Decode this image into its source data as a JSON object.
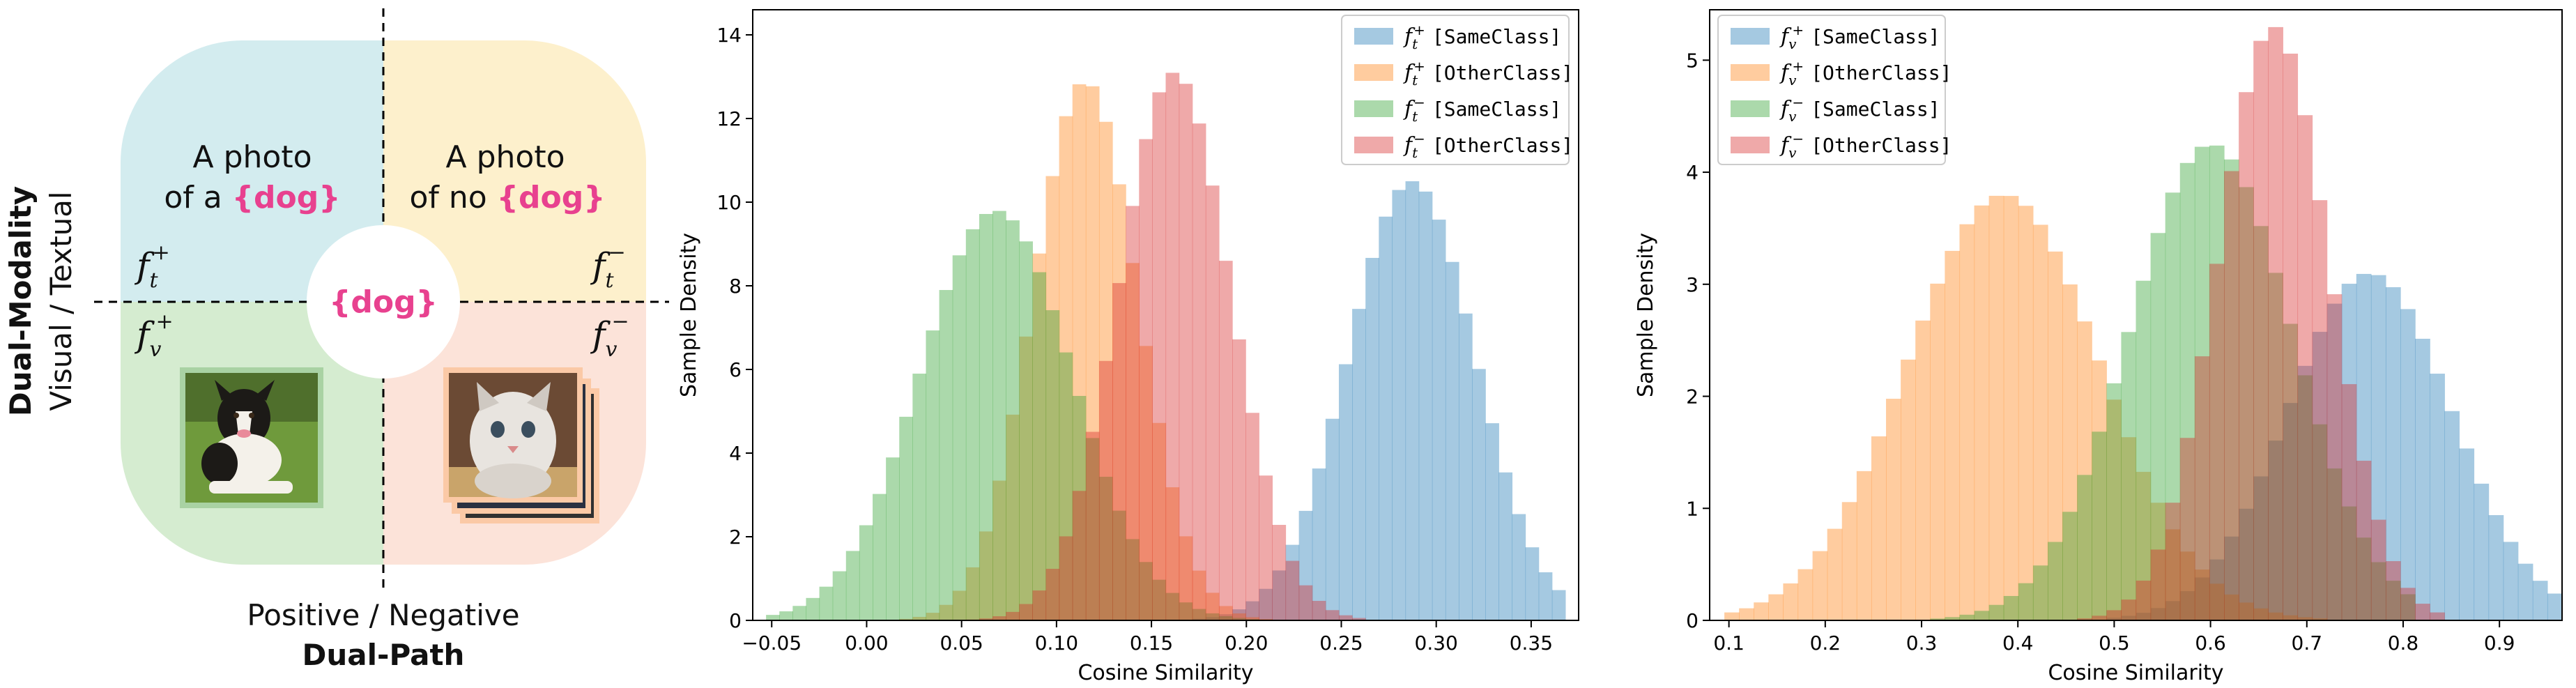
{
  "diagram": {
    "quadrant_text": {
      "top_left_line1": "A photo",
      "top_left_line2": "of a",
      "top_right_line1": "A photo",
      "top_right_line2": "of no",
      "token": "{dog}"
    },
    "center_token": "{dog}",
    "feature_labels": {
      "text_positive": "f",
      "text_positive_sub": "t",
      "text_positive_sup": "+",
      "text_negative": "f",
      "text_negative_sub": "t",
      "text_negative_sup": "−",
      "visual_positive": "f",
      "visual_positive_sub": "v",
      "visual_positive_sup": "+",
      "visual_negative": "f",
      "visual_negative_sub": "v",
      "visual_negative_sup": "−"
    },
    "vertical_axis_bold": "Dual-Modality",
    "vertical_axis_normal": "Visual / Textual",
    "horizontal_axis_normal": "Positive / Negative",
    "horizontal_axis_bold": "Dual-Path",
    "colors": {
      "top_left": "#d3ecef",
      "top_right": "#fdf0cc",
      "bottom_left": "#d5ecd0",
      "bottom_right": "#fce3d9",
      "token": "#e8418f"
    },
    "icons": {
      "dog_photo": "dog-photo-icon",
      "cat_photo": "cat-photo-icon"
    }
  },
  "chart_data": [
    {
      "type": "histogram",
      "xlabel": "Cosine Similarity",
      "ylabel": "Sample Density",
      "xlim": [
        -0.06,
        0.375
      ],
      "ylim": [
        0,
        14.6
      ],
      "xticks": [
        "−0.05",
        "0.00",
        "0.05",
        "0.10",
        "0.15",
        "0.20",
        "0.25",
        "0.30",
        "0.35"
      ],
      "xtick_values": [
        -0.05,
        0,
        0.05,
        0.1,
        0.15,
        0.2,
        0.25,
        0.3,
        0.35
      ],
      "yticks": [
        "0",
        "2",
        "4",
        "6",
        "8",
        "10",
        "12",
        "14"
      ],
      "ytick_values": [
        0,
        2,
        4,
        6,
        8,
        10,
        12,
        14
      ],
      "legend_position": "top-right",
      "series": [
        {
          "name": "[SameClass]",
          "symbol": "f",
          "sub": "t",
          "sup": "+",
          "color": "#1f77b4",
          "mean": 0.287,
          "sd": 0.0335,
          "peak": 10.5,
          "xmin": 0.17,
          "xmax": 0.37
        },
        {
          "name": "[OtherClass]",
          "symbol": "f",
          "sub": "t",
          "sup": "+",
          "color": "#ff7f0e",
          "mean": 0.115,
          "sd": 0.0275,
          "peak": 12.9,
          "xmin": 0.02,
          "xmax": 0.22
        },
        {
          "name": "[SameClass]",
          "symbol": "f",
          "sub": "t",
          "sup": "−",
          "color": "#2ca02c",
          "mean": 0.068,
          "sd": 0.04,
          "peak": 9.8,
          "xmin": -0.05,
          "xmax": 0.22
        },
        {
          "name": "[OtherClass]",
          "symbol": "f",
          "sub": "t",
          "sup": "−",
          "color": "#d62728",
          "mean": 0.162,
          "sd": 0.0295,
          "peak": 13.1,
          "xmin": 0.05,
          "xmax": 0.26
        }
      ]
    },
    {
      "type": "histogram",
      "xlabel": "Cosine Similarity",
      "ylabel": "Sample Density",
      "xlim": [
        0.08,
        0.965
      ],
      "ylim": [
        0,
        5.45
      ],
      "xticks": [
        "0.1",
        "0.2",
        "0.3",
        "0.4",
        "0.5",
        "0.6",
        "0.7",
        "0.8",
        "0.9"
      ],
      "xtick_values": [
        0.1,
        0.2,
        0.3,
        0.4,
        0.5,
        0.6,
        0.7,
        0.8,
        0.9
      ],
      "yticks": [
        "0",
        "1",
        "2",
        "3",
        "4",
        "5"
      ],
      "ytick_values": [
        0,
        1,
        2,
        3,
        4,
        5
      ],
      "legend_position": "top-left",
      "series": [
        {
          "name": "[SameClass]",
          "symbol": "f",
          "sub": "v",
          "sup": "+",
          "color": "#1f77b4",
          "mean": 0.765,
          "sd": 0.085,
          "peak": 3.1,
          "xmin": 0.38,
          "xmax": 0.96
        },
        {
          "name": "[OtherClass]",
          "symbol": "f",
          "sub": "v",
          "sup": "+",
          "color": "#ff7f0e",
          "mean": 0.385,
          "sd": 0.1,
          "peak": 3.8,
          "xmin": 0.1,
          "xmax": 0.72
        },
        {
          "name": "[SameClass]",
          "symbol": "f",
          "sub": "v",
          "sup": "−",
          "color": "#2ca02c",
          "mean": 0.6,
          "sd": 0.085,
          "peak": 4.25,
          "xmin": 0.17,
          "xmax": 0.82
        },
        {
          "name": "[OtherClass]",
          "symbol": "f",
          "sub": "v",
          "sup": "−",
          "color": "#d62728",
          "mean": 0.665,
          "sd": 0.058,
          "peak": 5.3,
          "xmin": 0.25,
          "xmax": 0.85
        }
      ]
    }
  ]
}
